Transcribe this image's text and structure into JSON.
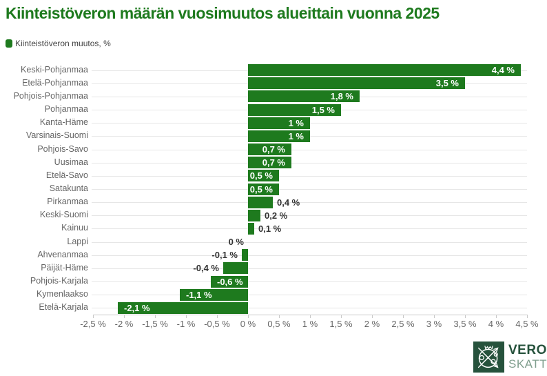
{
  "header": {
    "title": "Kiinteistöveron määrän vuosimuutos alueittain vuonna 2025"
  },
  "legend": {
    "label": "Kiinteistöveron muutos, %"
  },
  "colors": {
    "bar": "#1e7a1e",
    "title": "#1e7a1e",
    "grid": "#e6e6e6",
    "axis_line": "#c9c9c9",
    "axis_text": "#666666",
    "data_label_inside": "#ffffff",
    "data_label_outside": "#333333",
    "logo_dark_green": "#26523c",
    "logo_light_green": "#7f9e8d"
  },
  "chart_data": {
    "type": "bar",
    "orientation": "horizontal",
    "title": "Kiinteistöveron määrän vuosimuutos alueittain vuonna 2025",
    "categories": [
      "Keski-Pohjanmaa",
      "Etelä-Pohjanmaa",
      "Pohjois-Pohjanmaa",
      "Pohjanmaa",
      "Kanta-Häme",
      "Varsinais-Suomi",
      "Pohjois-Savo",
      "Uusimaa",
      "Etelä-Savo",
      "Satakunta",
      "Pirkanmaa",
      "Keski-Suomi",
      "Kainuu",
      "Lappi",
      "Ahvenanmaa",
      "Päijät-Häme",
      "Pohjois-Karjala",
      "Kymenlaakso",
      "Etelä-Karjala"
    ],
    "series": [
      {
        "name": "Kiinteistöveron muutos, %",
        "values": [
          4.4,
          3.5,
          1.8,
          1.5,
          1.0,
          1.0,
          0.7,
          0.7,
          0.5,
          0.5,
          0.4,
          0.2,
          0.1,
          0.0,
          -0.1,
          -0.4,
          -0.6,
          -1.1,
          -2.1
        ]
      }
    ],
    "value_labels": [
      "4,4 %",
      "3,5 %",
      "1,8 %",
      "1,5 %",
      "1 %",
      "1 %",
      "0,7 %",
      "0,7 %",
      "0,5 %",
      "0,5 %",
      "0,4 %",
      "0,2 %",
      "0,1 %",
      "0 %",
      "-0,1 %",
      "-0,4 %",
      "-0,6 %",
      "-1,1 %",
      "-2,1 %"
    ],
    "xlabel": "",
    "ylabel": "",
    "xlim": [
      -2.5,
      4.5
    ],
    "x_tick_values": [
      -2.5,
      -2,
      -1.5,
      -1,
      -0.5,
      0,
      0.5,
      1,
      1.5,
      2,
      2.5,
      3,
      3.5,
      4,
      4.5
    ],
    "x_tick_labels": [
      "-2,5 %",
      "-2 %",
      "-1,5 %",
      "-1 %",
      "-0,5 %",
      "0 %",
      "0,5 %",
      "1 %",
      "1,5 %",
      "2 %",
      "2,5 %",
      "3 %",
      "3,5 %",
      "4 %",
      "4,5 %"
    ],
    "grid": "horizontal-per-category",
    "legend_position": "top-left"
  },
  "logo": {
    "line1": "VERO",
    "line2": "SKATT",
    "emblem_icon": "crossed-arrows-crown-emblem"
  }
}
